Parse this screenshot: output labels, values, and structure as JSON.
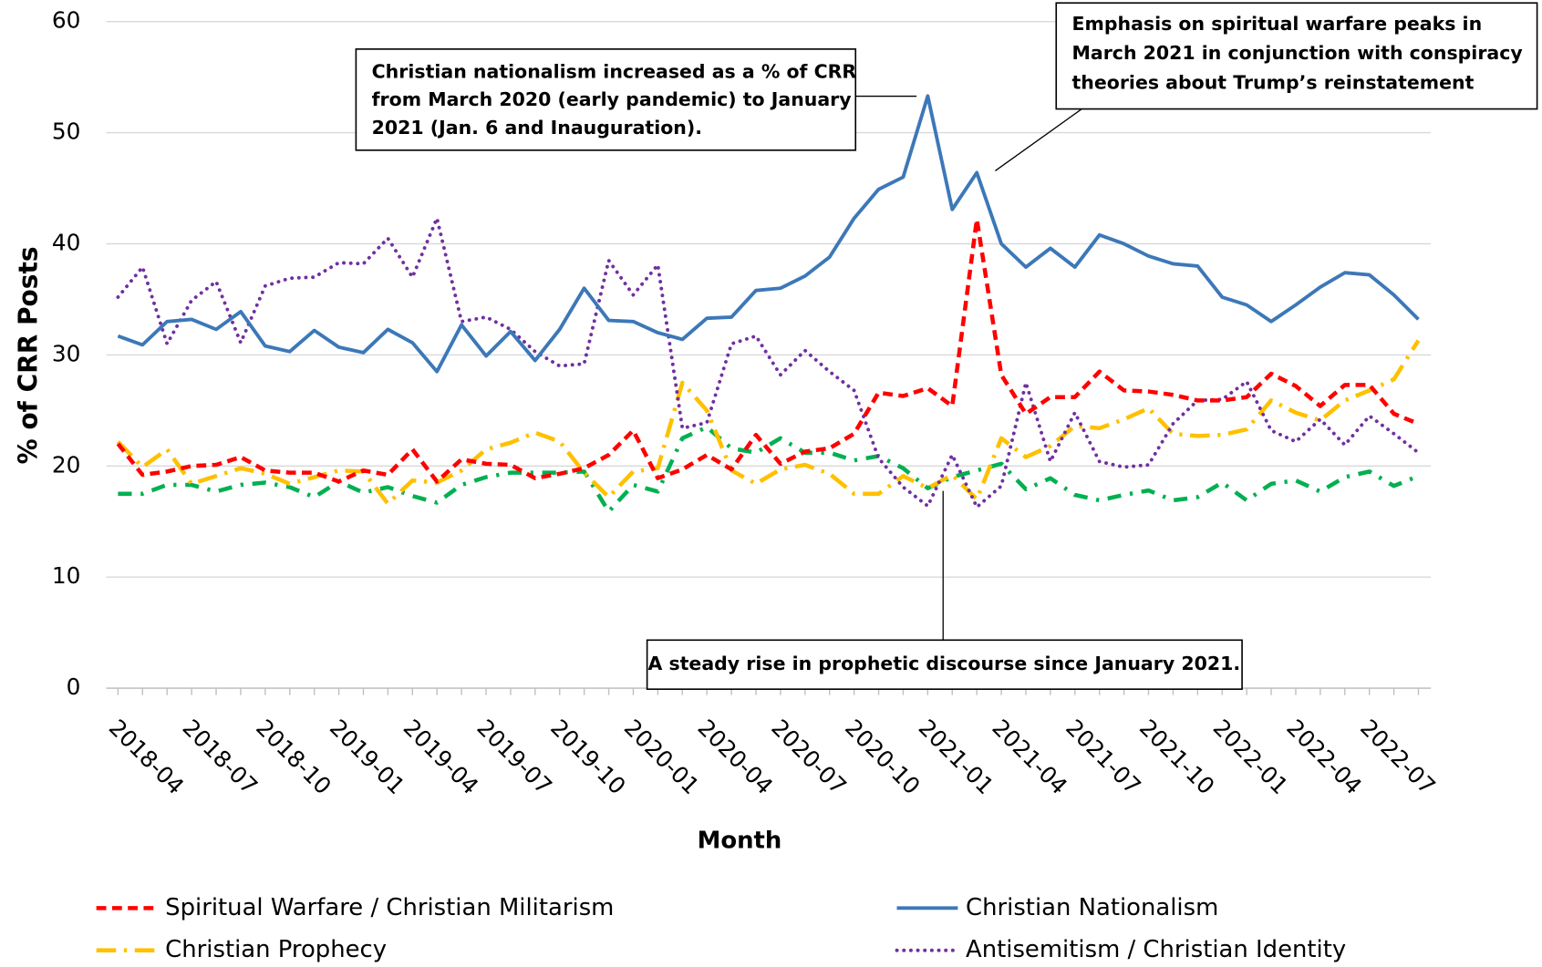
{
  "chart_data": {
    "type": "line",
    "x_label": "Month",
    "y_label": "% of CRR Posts",
    "categories": [
      "2018-04",
      null,
      null,
      "2018-07",
      null,
      null,
      "2018-10",
      null,
      null,
      "2019-01",
      null,
      null,
      "2019-04",
      null,
      null,
      "2019-07",
      null,
      null,
      "2019-10",
      null,
      null,
      "2020-01",
      null,
      null,
      "2020-04",
      null,
      null,
      "2020-07",
      null,
      null,
      "2020-10",
      null,
      null,
      "2021-01",
      null,
      null,
      "2021-04",
      null,
      null,
      "2021-07",
      null,
      null,
      "2021-10",
      null,
      null,
      "2022-01",
      null,
      null,
      "2022-04",
      null,
      null,
      "2022-07",
      null,
      null
    ],
    "ylim": [
      0,
      60
    ],
    "yticks": [
      0,
      10,
      20,
      30,
      40,
      50,
      60
    ],
    "grid": true,
    "series": [
      {
        "name": "Spiritual Warfare / Christian Militarism",
        "color": "#ff0000",
        "style": "dashed",
        "values": [
          22.0,
          19.2,
          19.5,
          20.0,
          20.1,
          20.8,
          19.6,
          19.4,
          19.4,
          18.6,
          19.6,
          19.2,
          21.5,
          18.6,
          20.6,
          20.2,
          20.1,
          18.9,
          19.3,
          19.8,
          21.0,
          23.2,
          18.9,
          19.7,
          21.0,
          19.7,
          22.8,
          20.2,
          21.3,
          21.6,
          22.9,
          26.6,
          26.3,
          27.0,
          25.4,
          42.2,
          28.2,
          24.7,
          26.2,
          26.2,
          28.5,
          26.8,
          26.7,
          26.4,
          25.9,
          25.9,
          26.2,
          28.3,
          27.2,
          25.4,
          27.3,
          27.3,
          24.7,
          23.8
        ]
      },
      {
        "name": "Christian Nationalism",
        "color": "#3c78b8",
        "style": "solid",
        "values": [
          31.7,
          30.9,
          33.0,
          33.2,
          32.3,
          33.9,
          30.8,
          30.3,
          32.2,
          30.7,
          30.2,
          32.3,
          31.1,
          28.5,
          32.7,
          29.9,
          32.1,
          29.5,
          32.3,
          36.0,
          33.1,
          33.0,
          32.0,
          31.4,
          33.3,
          33.4,
          35.8,
          36.0,
          37.1,
          38.8,
          42.3,
          44.9,
          46.0,
          53.3,
          43.1,
          46.4,
          40.0,
          37.9,
          39.6,
          37.9,
          40.8,
          40.0,
          38.9,
          38.2,
          38.0,
          35.2,
          34.5,
          33.0,
          34.5,
          36.1,
          37.4,
          37.2,
          35.4,
          33.2
        ]
      },
      {
        "name": "Christian Prophecy",
        "color": "#ffc000",
        "style": "longdashdot",
        "values": [
          22.2,
          19.9,
          21.5,
          18.4,
          19.1,
          19.8,
          19.3,
          18.4,
          19.0,
          19.6,
          19.5,
          16.6,
          18.7,
          18.5,
          19.6,
          21.5,
          22.1,
          23.0,
          22.2,
          19.4,
          17.2,
          19.5,
          19.8,
          27.5,
          25.0,
          19.6,
          18.4,
          19.7,
          20.1,
          19.3,
          17.5,
          17.5,
          19.1,
          18.0,
          19.2,
          17.0,
          22.5,
          20.8,
          21.8,
          23.6,
          23.4,
          24.2,
          25.2,
          22.9,
          22.7,
          22.8,
          23.3,
          25.9,
          24.8,
          24.1,
          25.9,
          26.8,
          27.8,
          31.3
        ]
      },
      {
        "name": "Antisemitism / Christian Identity",
        "color": "#7030a0",
        "style": "dotted",
        "values": [
          35.2,
          37.9,
          31.0,
          34.9,
          36.6,
          31.1,
          36.2,
          36.9,
          37.0,
          38.3,
          38.2,
          40.5,
          37.0,
          42.3,
          33.0,
          33.4,
          32.3,
          30.3,
          29.0,
          29.2,
          38.5,
          35.4,
          38.1,
          23.4,
          23.9,
          31.0,
          31.7,
          28.2,
          30.4,
          28.5,
          26.8,
          20.7,
          18.1,
          16.4,
          21.0,
          16.3,
          18.2,
          27.5,
          20.4,
          24.8,
          20.4,
          19.9,
          20.1,
          23.8,
          25.9,
          26.0,
          27.6,
          23.2,
          22.2,
          24.2,
          21.9,
          24.5,
          22.9,
          21.2
        ]
      },
      {
        "color": "#00b050",
        "style": "dashdot",
        "values": [
          17.5,
          17.5,
          18.3,
          18.3,
          17.7,
          18.3,
          18.5,
          18.1,
          17.2,
          18.6,
          17.6,
          18.1,
          17.3,
          16.7,
          18.3,
          19.0,
          19.4,
          19.4,
          19.4,
          19.5,
          15.9,
          18.3,
          17.7,
          22.5,
          23.5,
          21.6,
          21.2,
          22.5,
          21.2,
          21.2,
          20.5,
          20.9,
          19.8,
          18.0,
          19.0,
          19.6,
          20.2,
          17.9,
          18.9,
          17.4,
          16.9,
          17.4,
          17.8,
          16.9,
          17.2,
          18.5,
          16.9,
          18.4,
          18.7,
          17.7,
          19.0,
          19.5,
          18.2,
          19.1
        ]
      }
    ],
    "annotations": [
      {
        "lines": [
          "Christian nationalism increased as a % of CRR",
          "from March 2020 (early pandemic) to January",
          "2021 (Jan. 6 and Inauguration)."
        ]
      },
      {
        "lines": [
          "Emphasis on spiritual warfare peaks in",
          "March 2021 in conjunction with conspiracy",
          "theories about Trump’s reinstatement"
        ]
      },
      {
        "lines": [
          "A steady rise in prophetic discourse since January 2021."
        ]
      }
    ]
  }
}
